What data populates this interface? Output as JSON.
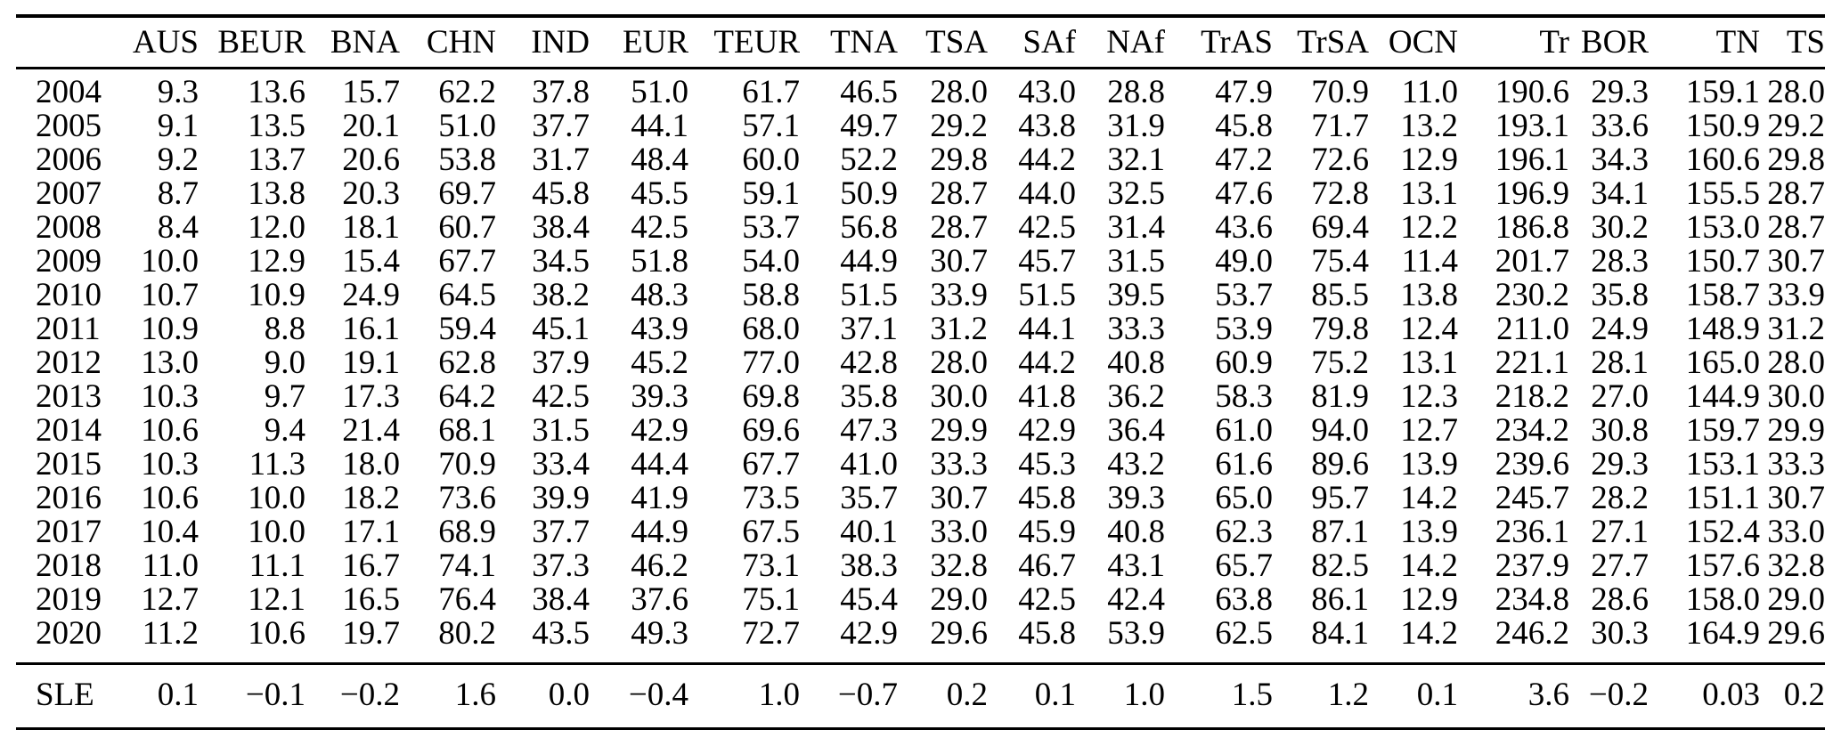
{
  "table": {
    "corner_label": "",
    "columns": [
      "AUS",
      "BEUR",
      "BNA",
      "CHN",
      "IND",
      "EUR",
      "TEUR",
      "TNA",
      "TSA",
      "SAf",
      "NAf",
      "TrAS",
      "TrSA",
      "OCN",
      "Tr",
      "BOR",
      "TN",
      "TS"
    ],
    "rows": [
      {
        "year": "2004",
        "values": [
          "9.3",
          "13.6",
          "15.7",
          "62.2",
          "37.8",
          "51.0",
          "61.7",
          "46.5",
          "28.0",
          "43.0",
          "28.8",
          "47.9",
          "70.9",
          "11.0",
          "190.6",
          "29.3",
          "159.1",
          "28.0"
        ]
      },
      {
        "year": "2005",
        "values": [
          "9.1",
          "13.5",
          "20.1",
          "51.0",
          "37.7",
          "44.1",
          "57.1",
          "49.7",
          "29.2",
          "43.8",
          "31.9",
          "45.8",
          "71.7",
          "13.2",
          "193.1",
          "33.6",
          "150.9",
          "29.2"
        ]
      },
      {
        "year": "2006",
        "values": [
          "9.2",
          "13.7",
          "20.6",
          "53.8",
          "31.7",
          "48.4",
          "60.0",
          "52.2",
          "29.8",
          "44.2",
          "32.1",
          "47.2",
          "72.6",
          "12.9",
          "196.1",
          "34.3",
          "160.6",
          "29.8"
        ]
      },
      {
        "year": "2007",
        "values": [
          "8.7",
          "13.8",
          "20.3",
          "69.7",
          "45.8",
          "45.5",
          "59.1",
          "50.9",
          "28.7",
          "44.0",
          "32.5",
          "47.6",
          "72.8",
          "13.1",
          "196.9",
          "34.1",
          "155.5",
          "28.7"
        ]
      },
      {
        "year": "2008",
        "values": [
          "8.4",
          "12.0",
          "18.1",
          "60.7",
          "38.4",
          "42.5",
          "53.7",
          "56.8",
          "28.7",
          "42.5",
          "31.4",
          "43.6",
          "69.4",
          "12.2",
          "186.8",
          "30.2",
          "153.0",
          "28.7"
        ]
      },
      {
        "year": "2009",
        "values": [
          "10.0",
          "12.9",
          "15.4",
          "67.7",
          "34.5",
          "51.8",
          "54.0",
          "44.9",
          "30.7",
          "45.7",
          "31.5",
          "49.0",
          "75.4",
          "11.4",
          "201.7",
          "28.3",
          "150.7",
          "30.7"
        ]
      },
      {
        "year": "2010",
        "values": [
          "10.7",
          "10.9",
          "24.9",
          "64.5",
          "38.2",
          "48.3",
          "58.8",
          "51.5",
          "33.9",
          "51.5",
          "39.5",
          "53.7",
          "85.5",
          "13.8",
          "230.2",
          "35.8",
          "158.7",
          "33.9"
        ]
      },
      {
        "year": "2011",
        "values": [
          "10.9",
          "8.8",
          "16.1",
          "59.4",
          "45.1",
          "43.9",
          "68.0",
          "37.1",
          "31.2",
          "44.1",
          "33.3",
          "53.9",
          "79.8",
          "12.4",
          "211.0",
          "24.9",
          "148.9",
          "31.2"
        ]
      },
      {
        "year": "2012",
        "values": [
          "13.0",
          "9.0",
          "19.1",
          "62.8",
          "37.9",
          "45.2",
          "77.0",
          "42.8",
          "28.0",
          "44.2",
          "40.8",
          "60.9",
          "75.2",
          "13.1",
          "221.1",
          "28.1",
          "165.0",
          "28.0"
        ]
      },
      {
        "year": "2013",
        "values": [
          "10.3",
          "9.7",
          "17.3",
          "64.2",
          "42.5",
          "39.3",
          "69.8",
          "35.8",
          "30.0",
          "41.8",
          "36.2",
          "58.3",
          "81.9",
          "12.3",
          "218.2",
          "27.0",
          "144.9",
          "30.0"
        ]
      },
      {
        "year": "2014",
        "values": [
          "10.6",
          "9.4",
          "21.4",
          "68.1",
          "31.5",
          "42.9",
          "69.6",
          "47.3",
          "29.9",
          "42.9",
          "36.4",
          "61.0",
          "94.0",
          "12.7",
          "234.2",
          "30.8",
          "159.7",
          "29.9"
        ]
      },
      {
        "year": "2015",
        "values": [
          "10.3",
          "11.3",
          "18.0",
          "70.9",
          "33.4",
          "44.4",
          "67.7",
          "41.0",
          "33.3",
          "45.3",
          "43.2",
          "61.6",
          "89.6",
          "13.9",
          "239.6",
          "29.3",
          "153.1",
          "33.3"
        ]
      },
      {
        "year": "2016",
        "values": [
          "10.6",
          "10.0",
          "18.2",
          "73.6",
          "39.9",
          "41.9",
          "73.5",
          "35.7",
          "30.7",
          "45.8",
          "39.3",
          "65.0",
          "95.7",
          "14.2",
          "245.7",
          "28.2",
          "151.1",
          "30.7"
        ]
      },
      {
        "year": "2017",
        "values": [
          "10.4",
          "10.0",
          "17.1",
          "68.9",
          "37.7",
          "44.9",
          "67.5",
          "40.1",
          "33.0",
          "45.9",
          "40.8",
          "62.3",
          "87.1",
          "13.9",
          "236.1",
          "27.1",
          "152.4",
          "33.0"
        ]
      },
      {
        "year": "2018",
        "values": [
          "11.0",
          "11.1",
          "16.7",
          "74.1",
          "37.3",
          "46.2",
          "73.1",
          "38.3",
          "32.8",
          "46.7",
          "43.1",
          "65.7",
          "82.5",
          "14.2",
          "237.9",
          "27.7",
          "157.6",
          "32.8"
        ]
      },
      {
        "year": "2019",
        "values": [
          "12.7",
          "12.1",
          "16.5",
          "76.4",
          "38.4",
          "37.6",
          "75.1",
          "45.4",
          "29.0",
          "42.5",
          "42.4",
          "63.8",
          "86.1",
          "12.9",
          "234.8",
          "28.6",
          "158.0",
          "29.0"
        ]
      },
      {
        "year": "2020",
        "values": [
          "11.2",
          "10.6",
          "19.7",
          "80.2",
          "43.5",
          "49.3",
          "72.7",
          "42.9",
          "29.6",
          "45.8",
          "53.9",
          "62.5",
          "84.1",
          "14.2",
          "246.2",
          "30.3",
          "164.9",
          "29.6"
        ]
      }
    ],
    "footer": {
      "label": "SLE",
      "values": [
        "0.1",
        "−0.1",
        "−0.2",
        "1.6",
        "0.0",
        "−0.4",
        "1.0",
        "−0.7",
        "0.2",
        "0.1",
        "1.0",
        "1.5",
        "1.2",
        "0.1",
        "3.6",
        "−0.2",
        "0.03",
        "0.2"
      ]
    }
  },
  "colors": {
    "background": "#ffffff",
    "text": "#000000",
    "rule": "#000000"
  }
}
